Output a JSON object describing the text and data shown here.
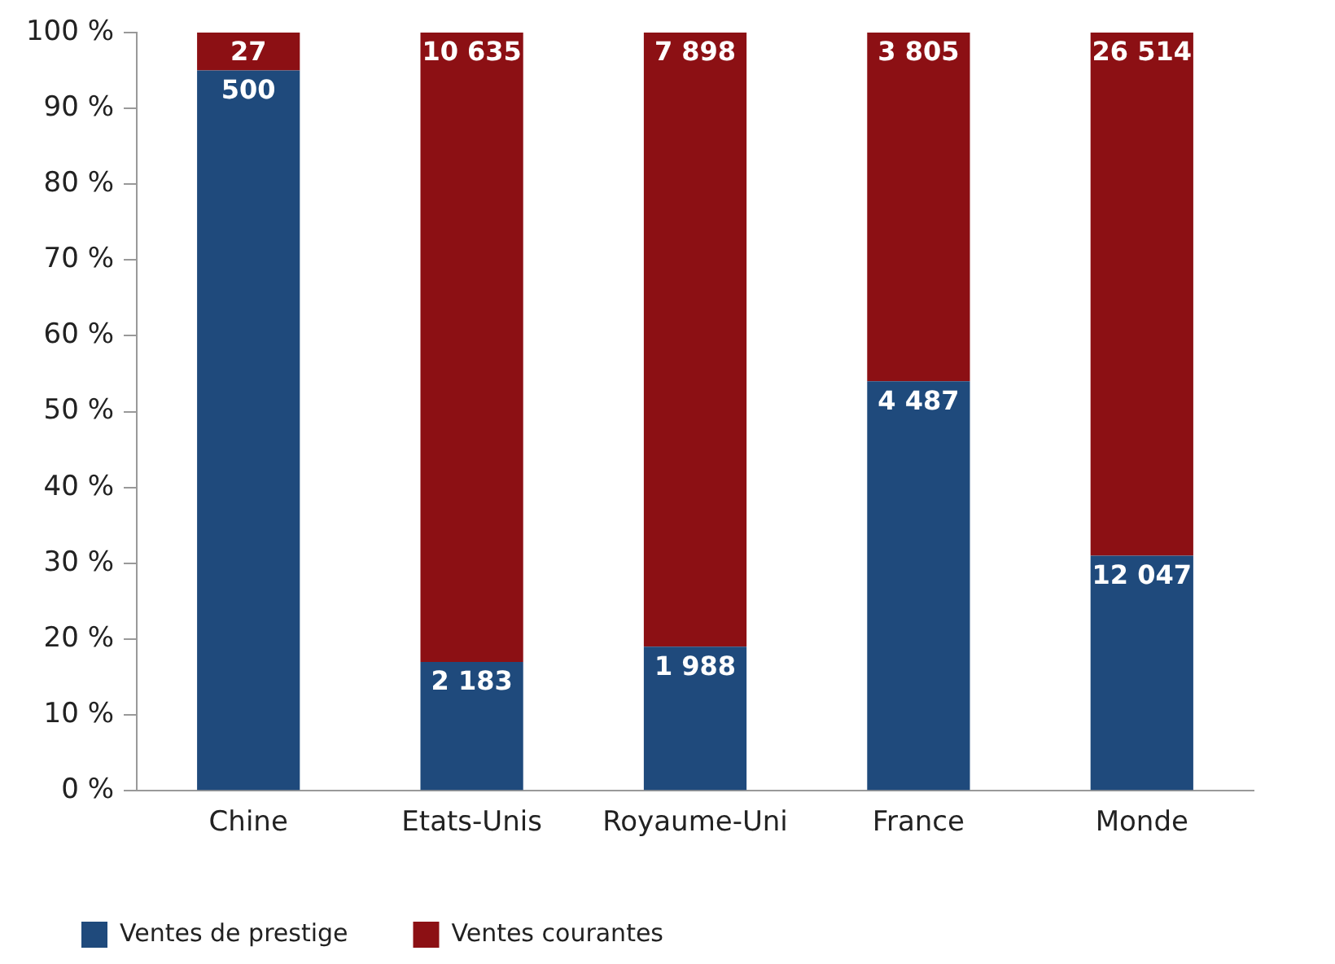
{
  "chart_data": {
    "type": "bar",
    "stacked": true,
    "categories": [
      "Chine",
      "Etats-Unis",
      "Royaume-Uni",
      "France",
      "Monde"
    ],
    "series": [
      {
        "name": "Ventes de prestige",
        "color": "#1f4a7c",
        "values": [
          95,
          17,
          19,
          54,
          31
        ]
      },
      {
        "name": "Ventes courantes",
        "color": "#8c1014",
        "values": [
          5,
          83,
          81,
          46,
          69
        ]
      }
    ],
    "annotations": [
      {
        "text": "500",
        "x": "Chine",
        "y": 95
      },
      {
        "text": "2 183",
        "x": "Etats-Unis",
        "y": 17
      },
      {
        "text": "1 988",
        "x": "Royaume-Uni",
        "y": 19
      },
      {
        "text": "4 487",
        "x": "France",
        "y": 54
      },
      {
        "text": "12 047",
        "x": "Monde",
        "y": 31
      },
      {
        "text": "27",
        "x": "Chine",
        "y": 100
      },
      {
        "text": "10 635",
        "x": "Etats-Unis",
        "y": 100
      },
      {
        "text": "7 898",
        "x": "Royaume-Uni",
        "y": 100
      },
      {
        "text": "3 805",
        "x": "France",
        "y": 100
      },
      {
        "text": "26 514",
        "x": "Monde",
        "y": 100
      }
    ],
    "ylim": [
      0,
      100
    ],
    "yticks": [
      {
        "value": 0,
        "label": "0 %"
      },
      {
        "value": 10,
        "label": "10 %"
      },
      {
        "value": 20,
        "label": "20 %"
      },
      {
        "value": 30,
        "label": "30 %"
      },
      {
        "value": 40,
        "label": "40 %"
      },
      {
        "value": 50,
        "label": "50 %"
      },
      {
        "value": 60,
        "label": "60 %"
      },
      {
        "value": 70,
        "label": "70 %"
      },
      {
        "value": 80,
        "label": "80 %"
      },
      {
        "value": 90,
        "label": "90 %"
      },
      {
        "value": 100,
        "label": "100 %"
      }
    ],
    "grid": false,
    "legend": "bottom left"
  }
}
